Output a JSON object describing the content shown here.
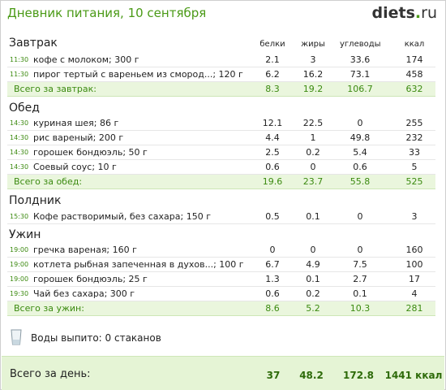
{
  "header": {
    "title": "Дневник питания, 10 сентября",
    "logo_main": "diets",
    "logo_dot": ".",
    "logo_tld": "ru"
  },
  "columns": [
    "белки",
    "жиры",
    "углеводы",
    "ккал"
  ],
  "meals": [
    {
      "title": "Завтрак",
      "items": [
        {
          "time": "11:30",
          "name": "кофе с молоком; 300 г",
          "protein": "2.1",
          "fat": "3",
          "carbs": "33.6",
          "kcal": "174"
        },
        {
          "time": "11:30",
          "name": "пирог тертый с вареньем из смород...; 120 г",
          "protein": "6.2",
          "fat": "16.2",
          "carbs": "73.1",
          "kcal": "458"
        }
      ],
      "total": {
        "label": "Всего за завтрак:",
        "protein": "8.3",
        "fat": "19.2",
        "carbs": "106.7",
        "kcal": "632"
      }
    },
    {
      "title": "Обед",
      "items": [
        {
          "time": "14:30",
          "name": "куриная шея; 86 г",
          "protein": "12.1",
          "fat": "22.5",
          "carbs": "0",
          "kcal": "255"
        },
        {
          "time": "14:30",
          "name": "рис вареный; 200 г",
          "protein": "4.4",
          "fat": "1",
          "carbs": "49.8",
          "kcal": "232"
        },
        {
          "time": "14:30",
          "name": "горошек бондюэль; 50 г",
          "protein": "2.5",
          "fat": "0.2",
          "carbs": "5.4",
          "kcal": "33"
        },
        {
          "time": "14:30",
          "name": "Соевый соус; 10 г",
          "protein": "0.6",
          "fat": "0",
          "carbs": "0.6",
          "kcal": "5"
        }
      ],
      "total": {
        "label": "Всего за обед:",
        "protein": "19.6",
        "fat": "23.7",
        "carbs": "55.8",
        "kcal": "525"
      }
    },
    {
      "title": "Полдник",
      "items": [
        {
          "time": "15:30",
          "name": "Кофе растворимый, без сахара; 150 г",
          "protein": "0.5",
          "fat": "0.1",
          "carbs": "0",
          "kcal": "3"
        }
      ]
    },
    {
      "title": "Ужин",
      "items": [
        {
          "time": "19:00",
          "name": "гречка вареная; 160 г",
          "protein": "0",
          "fat": "0",
          "carbs": "0",
          "kcal": "160"
        },
        {
          "time": "19:00",
          "name": "котлета рыбная запеченная в духов...; 100 г",
          "protein": "6.7",
          "fat": "4.9",
          "carbs": "7.5",
          "kcal": "100"
        },
        {
          "time": "19:00",
          "name": "горошек бондюэль; 25 г",
          "protein": "1.3",
          "fat": "0.1",
          "carbs": "2.7",
          "kcal": "17"
        },
        {
          "time": "19:30",
          "name": "Чай без сахара; 300 г",
          "protein": "0.6",
          "fat": "0.2",
          "carbs": "0.1",
          "kcal": "4"
        }
      ],
      "total": {
        "label": "Всего за ужин:",
        "protein": "8.6",
        "fat": "5.2",
        "carbs": "10.3",
        "kcal": "281"
      }
    }
  ],
  "water": {
    "label": "Воды выпито: 0 стаканов",
    "icon": "glass-icon"
  },
  "day_total": {
    "label": "Всего за день:",
    "protein": "37",
    "fat": "48.2",
    "carbs": "172.8",
    "kcal": "1441 ккал"
  },
  "colors": {
    "accent": "#4a9a16",
    "total_bg": "#eaf6dd",
    "day_bg": "#e5f4d5"
  }
}
